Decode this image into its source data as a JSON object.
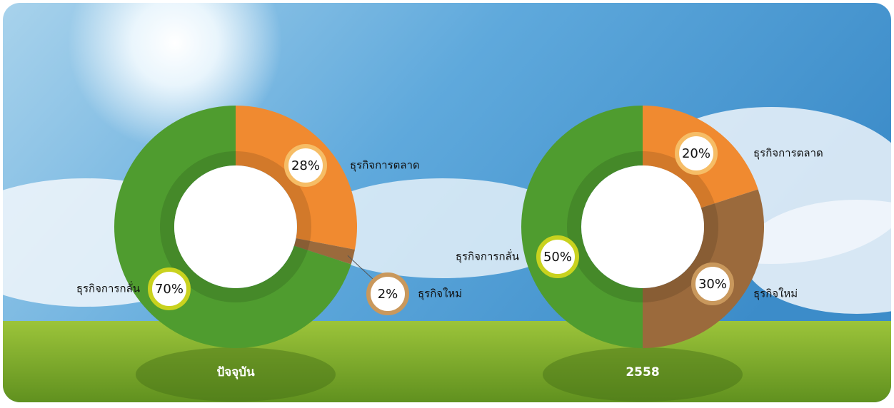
{
  "chart_data": [
    {
      "type": "donut",
      "title": "ปัจจุบัน",
      "categories": [
        "ธุรกิจการตลาด",
        "ธุรกิจใหม่",
        "ธุรกิจการกลั่น"
      ],
      "values": [
        28,
        2,
        70
      ],
      "value_labels": [
        "28%",
        "2%",
        "70%"
      ],
      "colors": [
        "#f08a30",
        "#9b6a3c",
        "#4f9c2f"
      ]
    },
    {
      "type": "donut",
      "title": "2558",
      "categories": [
        "ธุรกิจการตลาด",
        "ธุรกิจใหม่",
        "ธุรกิจการกลั่น"
      ],
      "values": [
        20,
        30,
        50
      ],
      "value_labels": [
        "20%",
        "30%",
        "50%"
      ],
      "colors": [
        "#f08a30",
        "#9b6a3c",
        "#4f9c2f"
      ]
    }
  ]
}
